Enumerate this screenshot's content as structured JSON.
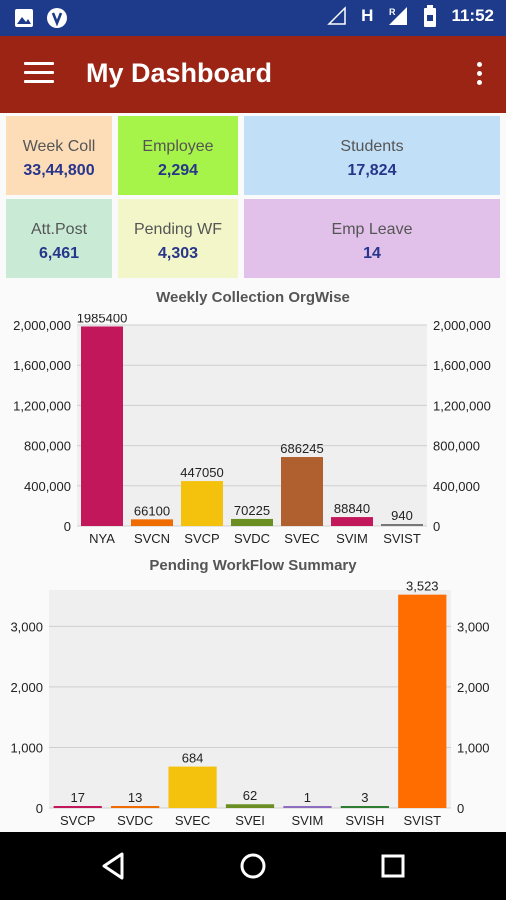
{
  "status": {
    "time": "11:52",
    "h_indicator": "H",
    "r_indicator": "R",
    "icons": [
      "image-icon",
      "app-notification-icon",
      "wifi-off-icon",
      "signal-icon",
      "battery-icon"
    ]
  },
  "app": {
    "title": "My Dashboard"
  },
  "tiles": [
    {
      "label": "Week Coll",
      "value": "33,44,800",
      "color": "#fddcb8"
    },
    {
      "label": "Employee",
      "value": "2,294",
      "color": "#a6f349"
    },
    {
      "label": "Students",
      "value": "17,824",
      "color": "#c1e0f8"
    },
    {
      "label": "Att.Post",
      "value": "6,461",
      "color": "#c9ebd6"
    },
    {
      "label": "Pending WF",
      "value": "4,303",
      "color": "#f3f6c9"
    },
    {
      "label": "Emp Leave",
      "value": "14",
      "color": "#e1c1ea"
    }
  ],
  "chart_data": [
    {
      "type": "bar",
      "title": "Weekly Collection OrgWise",
      "categories": [
        "NYA",
        "SVCN",
        "SVCP",
        "SVDC",
        "SVEC",
        "SVIM",
        "SVIST"
      ],
      "values": [
        1985400,
        66100,
        447050,
        70225,
        686245,
        88840,
        940
      ],
      "value_labels": [
        "1985400",
        "66100",
        "447050",
        "70225",
        "686245",
        "88840",
        "940"
      ],
      "colors": [
        "#c2185b",
        "#ef6c00",
        "#f4c20d",
        "#6b8e23",
        "#b0602e",
        "#c2185b",
        "#777777"
      ],
      "ylim": [
        0,
        2000000
      ],
      "yticks": [
        0,
        400000,
        800000,
        1200000,
        1600000,
        2000000
      ],
      "ytick_labels": [
        "0",
        "400,000",
        "800,000",
        "1,200,000",
        "1,600,000",
        "2,000,000"
      ],
      "grid": true,
      "right_axis": true
    },
    {
      "type": "bar",
      "title": "Pending WorkFlow Summary",
      "categories": [
        "SVCP",
        "SVDC",
        "SVEC",
        "SVEI",
        "SVIM",
        "SVISH",
        "SVIST"
      ],
      "values": [
        17,
        13,
        684,
        62,
        1,
        3,
        3523
      ],
      "value_labels": [
        "17",
        "13",
        "684",
        "62",
        "1",
        "3",
        "3,523"
      ],
      "colors": [
        "#c2185b",
        "#ef6c00",
        "#f4c20d",
        "#6b8e23",
        "#8e6cbf",
        "#2e7d32",
        "#ff6d00"
      ],
      "ylim": [
        0,
        3600
      ],
      "yticks": [
        0,
        1000,
        2000,
        3000
      ],
      "ytick_labels": [
        "0",
        "1,000",
        "2,000",
        "3,000"
      ],
      "grid": true,
      "right_axis": true
    }
  ]
}
